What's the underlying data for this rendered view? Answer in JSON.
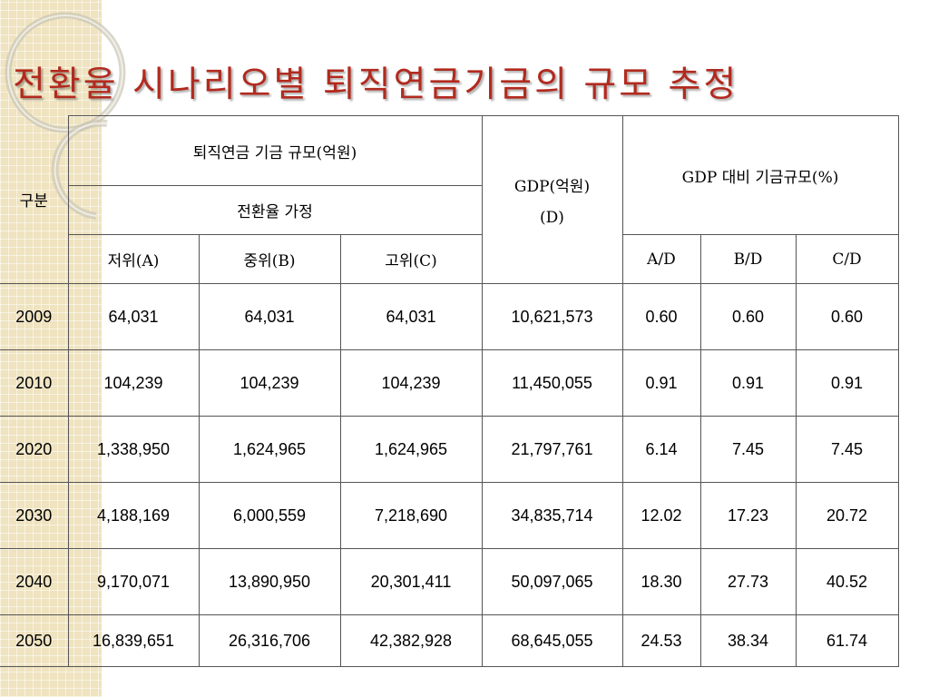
{
  "title": "전환율 시나리오별 퇴직연금기금의 규모 추정",
  "table": {
    "corner_label": "구분",
    "fund_size_header": "퇴직연금 기금 규모(억원)",
    "conversion_header": "전환율 가정",
    "gdp_header_line1": "GDP(억원)",
    "gdp_header_line2": "(D)",
    "ratio_header": "GDP 대비 기금규모(%)",
    "sub_headers": [
      "저위(A)",
      "중위(B)",
      "고위(C)",
      "A/D",
      "B/D",
      "C/D"
    ],
    "rows": [
      {
        "year": "2009",
        "a": "64,031",
        "b": "64,031",
        "c": "64,031",
        "gdp": "10,621,573",
        "ad": "0.60",
        "bd": "0.60",
        "cd": "0.60"
      },
      {
        "year": "2010",
        "a": "104,239",
        "b": "104,239",
        "c": "104,239",
        "gdp": "11,450,055",
        "ad": "0.91",
        "bd": "0.91",
        "cd": "0.91"
      },
      {
        "year": "2020",
        "a": "1,338,950",
        "b": "1,624,965",
        "c": "1,624,965",
        "gdp": "21,797,761",
        "ad": "6.14",
        "bd": "7.45",
        "cd": "7.45"
      },
      {
        "year": "2030",
        "a": "4,188,169",
        "b": "6,000,559",
        "c": "7,218,690",
        "gdp": "34,835,714",
        "ad": "12.02",
        "bd": "17.23",
        "cd": "20.72"
      },
      {
        "year": "2040",
        "a": "9,170,071",
        "b": "13,890,950",
        "c": "20,301,411",
        "gdp": "50,097,065",
        "ad": "18.30",
        "bd": "27.73",
        "cd": "40.52"
      },
      {
        "year": "2050",
        "a": "16,839,651",
        "b": "26,316,706",
        "c": "42,382,928",
        "gdp": "68,645,055",
        "ad": "24.53",
        "bd": "38.34",
        "cd": "61.74"
      }
    ]
  }
}
